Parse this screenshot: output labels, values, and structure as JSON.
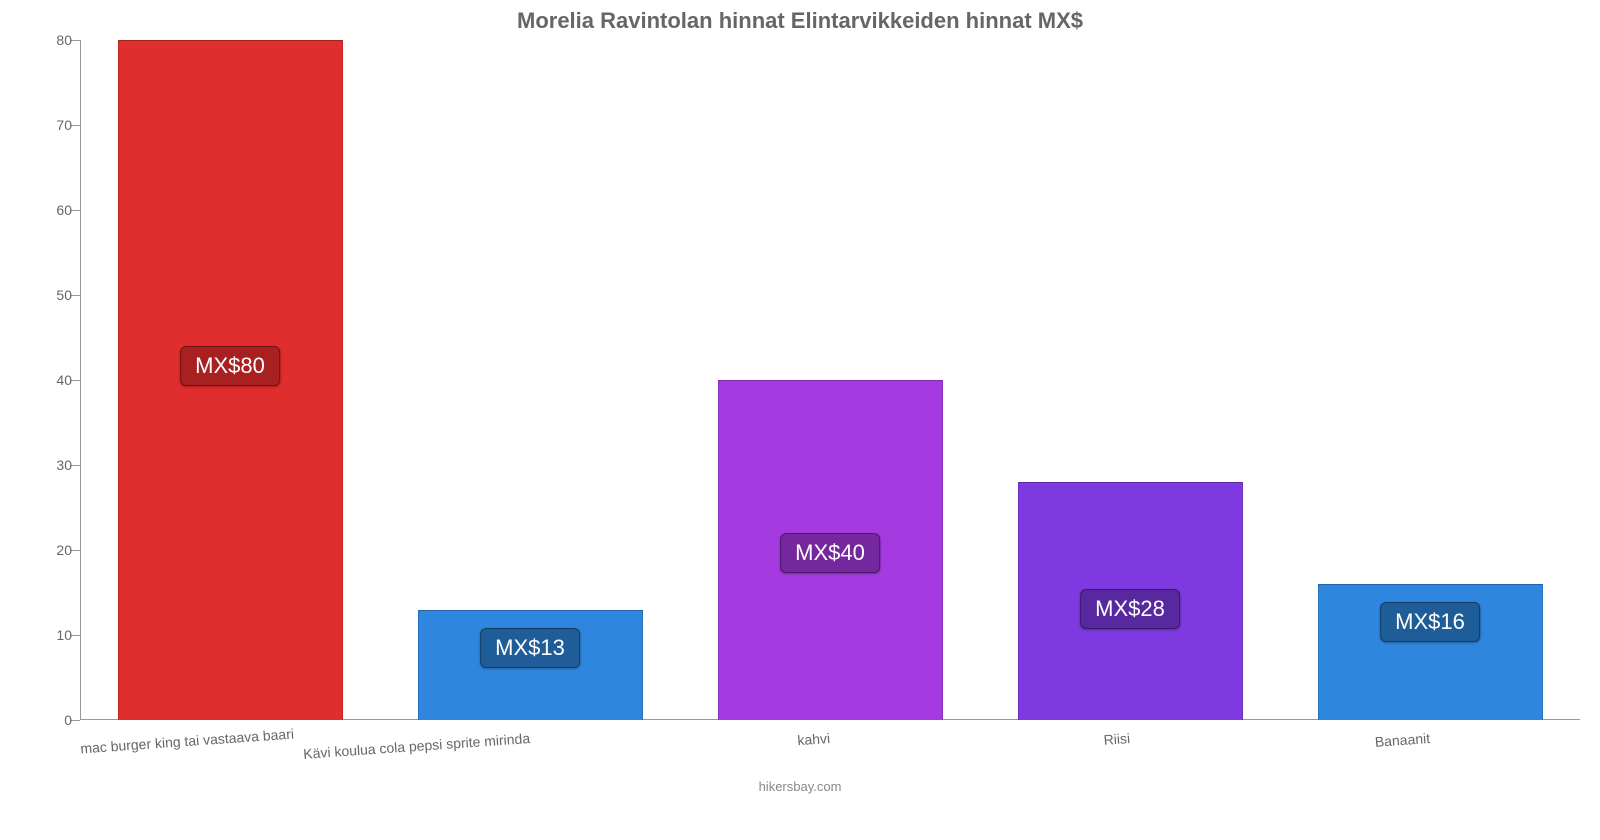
{
  "chart": {
    "type": "bar",
    "title": "Morelia Ravintolan hinnat Elintarvikkeiden hinnat MX$",
    "title_fontsize": 22,
    "title_color": "#666666",
    "background_color": "#ffffff",
    "axis_color": "#999999",
    "tick_label_color": "#666666",
    "tick_label_fontsize": 14,
    "ylim": [
      0,
      80
    ],
    "ytick_step": 10,
    "yticks": [
      0,
      10,
      20,
      30,
      40,
      50,
      60,
      70,
      80
    ],
    "bar_width": 0.75,
    "xlabel_rotation_deg": -4,
    "categories": [
      "mac burger king tai vastaava baari",
      "Kävi koulua cola pepsi sprite mirinda",
      "kahvi",
      "Riisi",
      "Banaanit"
    ],
    "values": [
      80,
      13,
      40,
      28,
      16
    ],
    "value_labels": [
      "MX$80",
      "MX$13",
      "MX$40",
      "MX$28",
      "MX$16"
    ],
    "bar_colors": [
      "#e02d2d",
      "#2e86de",
      "#a53ae0",
      "#7e3ae0",
      "#2e86de"
    ],
    "badge_bg_colors": [
      "#a82020",
      "#1f5d99",
      "#75289e",
      "#58289e",
      "#1f5d99"
    ],
    "badge_text_color": "#ffffff",
    "badge_fontsize": 22,
    "footer": "hikersbay.com",
    "footer_color": "#888888",
    "footer_fontsize": 13
  }
}
